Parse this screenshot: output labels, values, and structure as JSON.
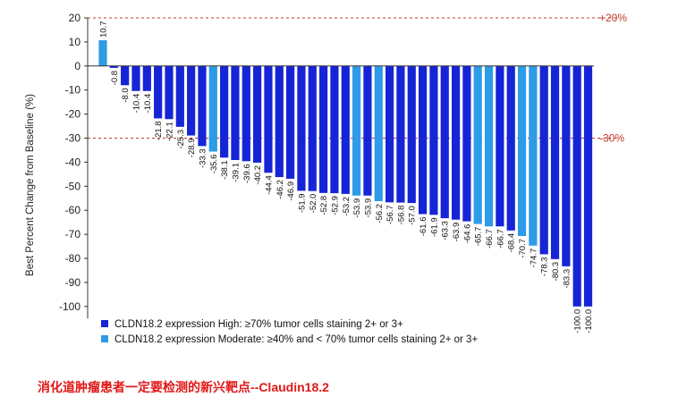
{
  "chart_data": {
    "type": "bar",
    "ylabel": "Best Percent Change from Baseline (%)",
    "ylim": [
      -110,
      20
    ],
    "yticks": [
      20,
      10,
      0,
      -10,
      -20,
      -30,
      -40,
      -50,
      -60,
      -70,
      -80,
      -90,
      -100
    ],
    "grid": false,
    "values": [
      10.7,
      -0.8,
      -8.0,
      -10.4,
      -10.4,
      -21.8,
      -22.1,
      -25.3,
      -28.9,
      -33.3,
      -35.6,
      -38.1,
      -39.1,
      -39.6,
      -40.2,
      -44.4,
      -46.2,
      -46.9,
      -51.9,
      -52.0,
      -52.8,
      -52.9,
      -53.2,
      -53.9,
      -53.9,
      -56.2,
      -56.7,
      -56.8,
      -57.0,
      -61.6,
      -61.9,
      -63.3,
      -63.9,
      -64.6,
      -65.7,
      -66.7,
      -66.7,
      -68.4,
      -70.7,
      -74.7,
      -78.3,
      -80.3,
      -83.3,
      -100.0,
      -100.0
    ],
    "labels": [
      "10.7",
      "-0.8",
      "-8.0",
      "-10.4",
      "-10.4",
      "-21.8",
      "-22.1",
      "-25.3",
      "-28.9",
      "-33.3",
      "-35.6",
      "-38.1",
      "-39.1",
      "-39.6",
      "-40.2",
      "-44.4",
      "-46.2",
      "-46.9",
      "-51.9",
      "-52.0",
      "-52.8",
      "-52.9",
      "-53.2",
      "-53.9",
      "-53.9",
      "-56.2",
      "-56.7",
      "-56.8",
      "-57.0",
      "-61.6",
      "-61.9",
      "-63.3",
      "-63.9",
      "-64.6",
      "-65.7",
      "-66.7",
      "-66.7",
      "-68.4",
      "-70.7",
      "-74.7",
      "-78.3",
      "-80.3",
      "-83.3",
      "-100.0",
      "-100.0"
    ],
    "groups": [
      "moderate",
      "high",
      "high",
      "high",
      "high",
      "high",
      "high",
      "high",
      "high",
      "high",
      "moderate",
      "high",
      "high",
      "high",
      "high",
      "high",
      "high",
      "high",
      "high",
      "high",
      "high",
      "high",
      "high",
      "moderate",
      "high",
      "moderate",
      "high",
      "high",
      "high",
      "high",
      "high",
      "high",
      "high",
      "high",
      "moderate",
      "moderate",
      "high",
      "high",
      "moderate",
      "moderate",
      "high",
      "high",
      "high",
      "high",
      "high"
    ],
    "series": [
      {
        "key": "high",
        "name": "CLDN18.2 expression High: ≥70% tumor cells staining 2+ or 3+",
        "color": "#1525d6"
      },
      {
        "key": "moderate",
        "name": "CLDN18.2 expression Moderate: ≥40% and  < 70% tumor cells staining 2+ or 3+",
        "color": "#2e9be6"
      }
    ],
    "reference_lines": [
      {
        "value": 20,
        "label": "+20%",
        "color": "#c0392b"
      },
      {
        "value": -30,
        "label": "-30%",
        "color": "#c0392b"
      }
    ],
    "legend_position": "bottom-left"
  },
  "caption": "消化道肿瘤患者一定要检测的新兴靶点--Claudin18.2"
}
